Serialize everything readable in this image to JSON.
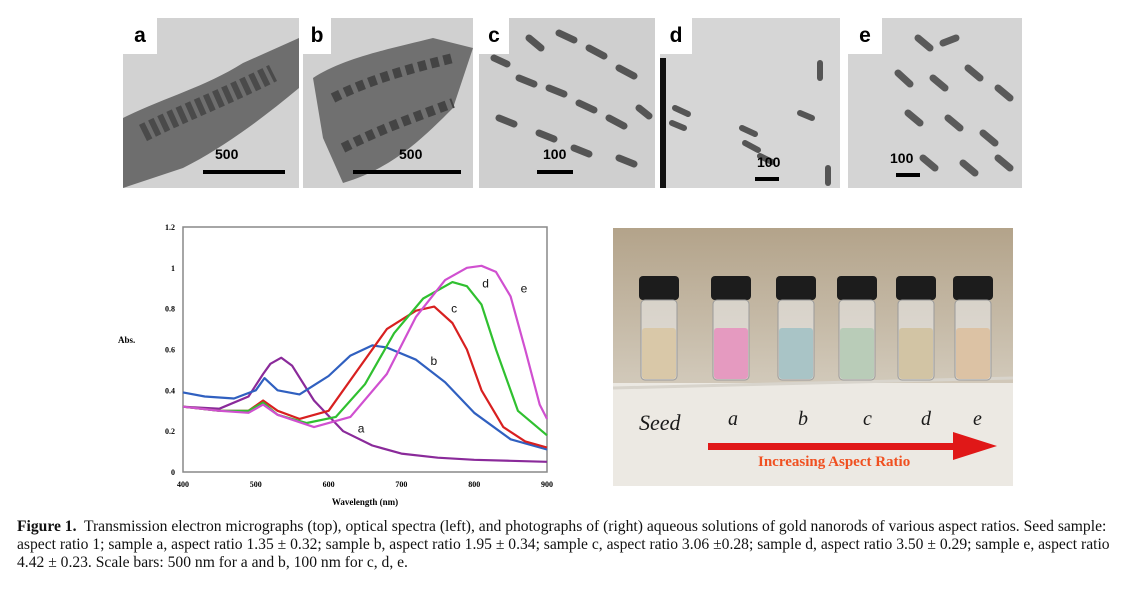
{
  "tem_panels": [
    {
      "letter": "a",
      "scale": "500"
    },
    {
      "letter": "b",
      "scale": "500"
    },
    {
      "letter": "c",
      "scale": "100"
    },
    {
      "letter": "d",
      "scale": "100"
    },
    {
      "letter": "e",
      "scale": "100"
    }
  ],
  "photo": {
    "seed_label": "Seed",
    "sample_labels": [
      "a",
      "b",
      "c",
      "d",
      "e"
    ],
    "arrow_text": "Increasing Aspect Ratio",
    "vial_colors": [
      "#d9c8a8",
      "#e59ac0",
      "#a9c4c6",
      "#b9ccb8",
      "#d2c4a4",
      "#dcc2a4"
    ]
  },
  "caption": {
    "label": "Figure 1.",
    "text": "Transmission electron micrographs (top), optical spectra (left), and photographs of (right) aqueous solutions of gold nanorods of various aspect ratios. Seed sample:  aspect ratio 1; sample a, aspect ratio 1.35 ± 0.32; sample b, aspect ratio 1.95 ± 0.34; sample c, aspect ratio 3.06 ±0.28; sample d, aspect ratio 3.50 ± 0.29; sample e, aspect ratio 4.42 ± 0.23. Scale bars:  500 nm for a and b, 100 nm for c, d, e."
  },
  "chart_data": {
    "type": "line",
    "title": "",
    "xlabel": "Wavelength (nm)",
    "ylabel": "Abs.",
    "xlim": [
      400,
      900
    ],
    "ylim": [
      0,
      1.2
    ],
    "xticks": [
      "400",
      "500",
      "600",
      "700",
      "800",
      "900"
    ],
    "yticks": [
      "0",
      "0.2",
      "0.4",
      "0.6",
      "0.8",
      "1",
      "1.2"
    ],
    "grid": false,
    "series": [
      {
        "name": "a",
        "color": "#8a2a9a",
        "x": [
          400,
          450,
          490,
          510,
          520,
          535,
          550,
          580,
          620,
          660,
          700,
          750,
          800,
          850,
          900
        ],
        "y": [
          0.32,
          0.31,
          0.37,
          0.48,
          0.53,
          0.56,
          0.52,
          0.35,
          0.2,
          0.13,
          0.09,
          0.07,
          0.06,
          0.055,
          0.05
        ]
      },
      {
        "name": "b",
        "color": "#3060c0",
        "x": [
          400,
          430,
          470,
          500,
          512,
          530,
          560,
          600,
          630,
          660,
          680,
          720,
          760,
          800,
          850,
          900
        ],
        "y": [
          0.39,
          0.37,
          0.36,
          0.4,
          0.46,
          0.4,
          0.38,
          0.47,
          0.57,
          0.62,
          0.61,
          0.55,
          0.44,
          0.29,
          0.16,
          0.11
        ]
      },
      {
        "name": "c",
        "color": "#d82020",
        "x": [
          400,
          450,
          490,
          510,
          530,
          560,
          600,
          640,
          680,
          720,
          745,
          770,
          790,
          810,
          840,
          870,
          900
        ],
        "y": [
          0.32,
          0.3,
          0.3,
          0.35,
          0.3,
          0.26,
          0.3,
          0.5,
          0.7,
          0.79,
          0.81,
          0.73,
          0.6,
          0.4,
          0.22,
          0.15,
          0.12
        ]
      },
      {
        "name": "d",
        "color": "#30c030",
        "x": [
          400,
          450,
          490,
          510,
          530,
          570,
          610,
          650,
          690,
          730,
          770,
          790,
          810,
          830,
          860,
          900
        ],
        "y": [
          0.32,
          0.3,
          0.3,
          0.34,
          0.28,
          0.24,
          0.27,
          0.43,
          0.68,
          0.85,
          0.93,
          0.91,
          0.82,
          0.6,
          0.3,
          0.18
        ]
      },
      {
        "name": "e",
        "color": "#d050d0",
        "x": [
          400,
          450,
          490,
          510,
          530,
          580,
          630,
          680,
          720,
          760,
          790,
          810,
          830,
          850,
          870,
          890,
          900
        ],
        "y": [
          0.32,
          0.3,
          0.29,
          0.33,
          0.28,
          0.22,
          0.27,
          0.48,
          0.76,
          0.94,
          1.0,
          1.01,
          0.98,
          0.86,
          0.6,
          0.33,
          0.26
        ]
      }
    ]
  }
}
